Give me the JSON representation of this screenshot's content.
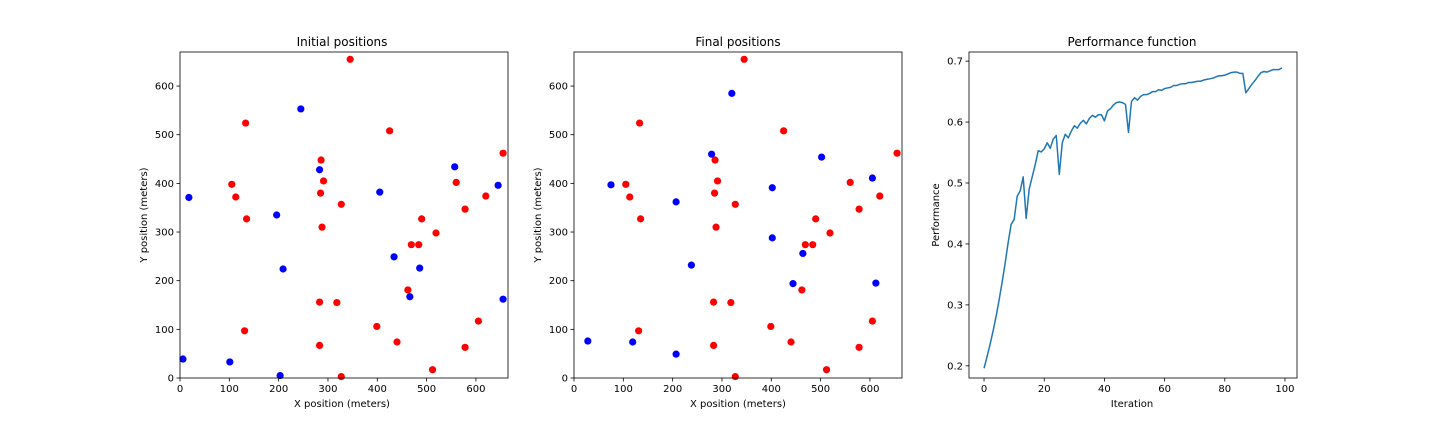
{
  "chart_data": [
    {
      "type": "scatter",
      "title": "Initial positions",
      "xlabel": "X position (meters)",
      "ylabel": "Y position (meters)",
      "xlim": [
        0,
        665
      ],
      "ylim": [
        0,
        670
      ],
      "xticks": [
        0,
        100,
        200,
        300,
        400,
        500,
        600
      ],
      "yticks": [
        0,
        100,
        200,
        300,
        400,
        500,
        600
      ],
      "grid": false,
      "series": [
        {
          "color": "#ff0000",
          "points": [
            [
              345,
              655
            ],
            [
              133,
              524
            ],
            [
              425,
              508
            ],
            [
              655,
              462
            ],
            [
              286,
              448
            ],
            [
              105,
              398
            ],
            [
              291,
              405
            ],
            [
              560,
              402
            ],
            [
              285,
              380
            ],
            [
              113,
              372
            ],
            [
              620,
              374
            ],
            [
              327,
              357
            ],
            [
              135,
              327
            ],
            [
              490,
              327
            ],
            [
              288,
              310
            ],
            [
              578,
              347
            ],
            [
              519,
              298
            ],
            [
              469,
              274
            ],
            [
              484,
              274
            ],
            [
              462,
              181
            ],
            [
              283,
              156
            ],
            [
              318,
              155
            ],
            [
              605,
              117
            ],
            [
              131,
              97
            ],
            [
              399,
              106
            ],
            [
              440,
              74
            ],
            [
              283,
              67
            ],
            [
              578,
              63
            ],
            [
              512,
              17
            ],
            [
              327,
              3
            ]
          ]
        },
        {
          "color": "#0000ff",
          "points": [
            [
              245,
              553
            ],
            [
              557,
              434
            ],
            [
              283,
              428
            ],
            [
              645,
              396
            ],
            [
              405,
              382
            ],
            [
              18,
              371
            ],
            [
              196,
              335
            ],
            [
              434,
              249
            ],
            [
              486,
              226
            ],
            [
              209,
              224
            ],
            [
              466,
              167
            ],
            [
              655,
              162
            ],
            [
              6,
              39
            ],
            [
              101,
              33
            ],
            [
              203,
              5
            ]
          ]
        }
      ]
    },
    {
      "type": "scatter",
      "title": "Final positions",
      "xlabel": "X position (meters)",
      "ylabel": "",
      "xlim": [
        0,
        665
      ],
      "ylim": [
        0,
        670
      ],
      "xticks": [
        0,
        100,
        200,
        300,
        400,
        500,
        600
      ],
      "yticks": [
        0,
        100,
        200,
        300,
        400,
        500,
        600
      ],
      "grid": false,
      "series": [
        {
          "color": "#ff0000",
          "points": [
            [
              345,
              655
            ],
            [
              133,
              524
            ],
            [
              425,
              508
            ],
            [
              655,
              462
            ],
            [
              286,
              448
            ],
            [
              105,
              398
            ],
            [
              291,
              405
            ],
            [
              560,
              402
            ],
            [
              285,
              380
            ],
            [
              113,
              372
            ],
            [
              620,
              374
            ],
            [
              327,
              357
            ],
            [
              135,
              327
            ],
            [
              490,
              327
            ],
            [
              288,
              310
            ],
            [
              578,
              347
            ],
            [
              519,
              298
            ],
            [
              469,
              274
            ],
            [
              484,
              274
            ],
            [
              462,
              181
            ],
            [
              283,
              156
            ],
            [
              318,
              155
            ],
            [
              605,
              117
            ],
            [
              131,
              97
            ],
            [
              399,
              106
            ],
            [
              440,
              74
            ],
            [
              283,
              67
            ],
            [
              578,
              63
            ],
            [
              512,
              17
            ],
            [
              327,
              3
            ]
          ]
        },
        {
          "color": "#0000ff",
          "points": [
            [
              320,
              585
            ],
            [
              279,
              460
            ],
            [
              502,
              454
            ],
            [
              75,
              397
            ],
            [
              402,
              391
            ],
            [
              605,
              411
            ],
            [
              207,
              362
            ],
            [
              402,
              288
            ],
            [
              464,
              256
            ],
            [
              238,
              232
            ],
            [
              612,
              195
            ],
            [
              444,
              194
            ],
            [
              28,
              76
            ],
            [
              119,
              74
            ],
            [
              207,
              49
            ]
          ]
        }
      ]
    },
    {
      "type": "line",
      "title": "Performance function",
      "xlabel": "Iteration",
      "ylabel": "Performance",
      "xlim": [
        -5,
        104
      ],
      "ylim": [
        0.18,
        0.715
      ],
      "xticks": [
        0,
        20,
        40,
        60,
        80,
        100
      ],
      "yticks": [
        0.2,
        0.3,
        0.4,
        0.5,
        0.6,
        0.7
      ],
      "grid": false,
      "series": [
        {
          "color": "#1f77b4",
          "x": [
            0,
            1,
            2,
            3,
            4,
            5,
            6,
            7,
            8,
            9,
            10,
            11,
            12,
            13,
            14,
            15,
            16,
            17,
            18,
            19,
            20,
            21,
            22,
            23,
            24,
            25,
            26,
            27,
            28,
            29,
            30,
            31,
            32,
            33,
            34,
            35,
            36,
            37,
            38,
            39,
            40,
            41,
            42,
            43,
            44,
            45,
            46,
            47,
            48,
            49,
            50,
            51,
            52,
            53,
            54,
            55,
            56,
            57,
            58,
            59,
            60,
            61,
            62,
            63,
            64,
            65,
            66,
            67,
            68,
            69,
            70,
            71,
            72,
            73,
            74,
            75,
            76,
            77,
            78,
            79,
            80,
            81,
            82,
            83,
            84,
            85,
            86,
            87,
            88,
            89,
            90,
            91,
            92,
            93,
            94,
            95,
            96,
            97,
            98,
            99
          ],
          "values": [
            0.196,
            0.215,
            0.235,
            0.257,
            0.281,
            0.308,
            0.337,
            0.368,
            0.402,
            0.432,
            0.44,
            0.478,
            0.487,
            0.51,
            0.442,
            0.49,
            0.51,
            0.53,
            0.553,
            0.551,
            0.556,
            0.566,
            0.557,
            0.572,
            0.578,
            0.514,
            0.566,
            0.58,
            0.574,
            0.585,
            0.594,
            0.59,
            0.598,
            0.603,
            0.597,
            0.606,
            0.611,
            0.608,
            0.612,
            0.612,
            0.602,
            0.618,
            0.622,
            0.628,
            0.632,
            0.633,
            0.632,
            0.629,
            0.583,
            0.634,
            0.64,
            0.636,
            0.642,
            0.645,
            0.645,
            0.647,
            0.65,
            0.65,
            0.653,
            0.652,
            0.655,
            0.656,
            0.657,
            0.66,
            0.66,
            0.662,
            0.663,
            0.663,
            0.665,
            0.665,
            0.666,
            0.667,
            0.667,
            0.669,
            0.67,
            0.671,
            0.672,
            0.674,
            0.676,
            0.676,
            0.677,
            0.679,
            0.681,
            0.682,
            0.682,
            0.68,
            0.68,
            0.648,
            0.655,
            0.662,
            0.668,
            0.675,
            0.681,
            0.683,
            0.682,
            0.684,
            0.686,
            0.686,
            0.686,
            0.689
          ]
        }
      ]
    }
  ]
}
